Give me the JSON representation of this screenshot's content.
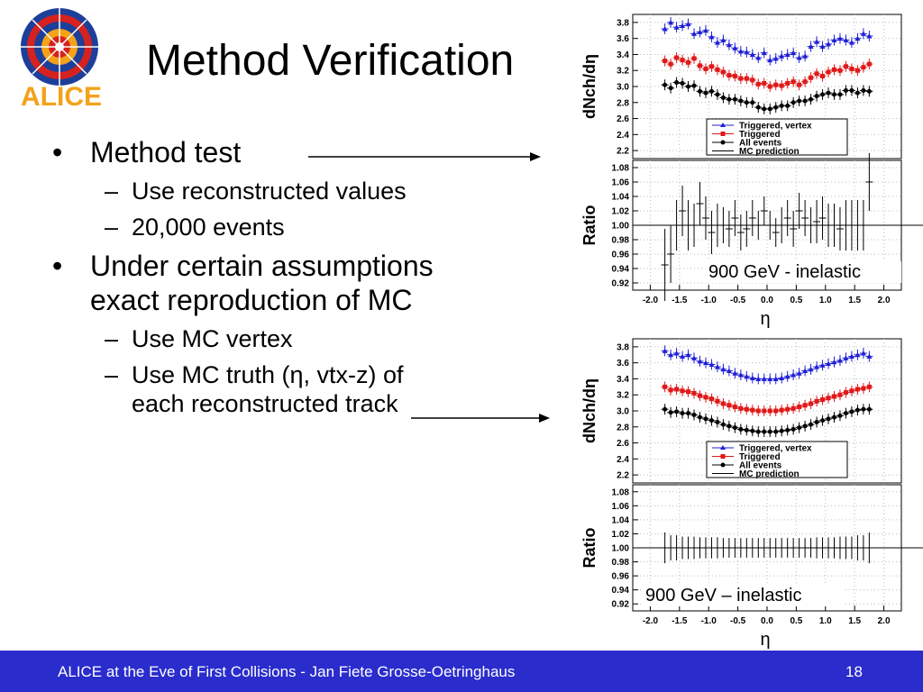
{
  "slide": {
    "title": "Method Verification",
    "logo_text": "ALICE",
    "bullets": [
      {
        "text": "Method test",
        "sub": [
          "Use reconstructed values",
          "20,000 events"
        ]
      },
      {
        "text": "Under certain assumptions exact reproduction of MC",
        "sub": [
          "Use MC vertex",
          "Use MC truth (η, vtx-z) of each reconstructed track"
        ]
      }
    ],
    "footer": "ALICE at the Eve of First Collisions  - Jan Fiete Grosse-Oetringhaus",
    "page_number": "18"
  },
  "colors": {
    "footer_bg": "#2a2ccc",
    "triggered_vertex": "#1f1fd6",
    "triggered": "#e01818",
    "all_events": "#000000",
    "logo_red": "#d6221e",
    "logo_blue": "#1d3f9a",
    "logo_orange": "#f3a21a"
  },
  "chart_data": [
    {
      "type": "scatter",
      "label": "900 GeV - inelastic",
      "xlabel": "η",
      "ylabel_top": "dNch/dη",
      "ylabel_bottom": "Ratio",
      "xlim": [
        -2.3,
        2.3
      ],
      "ylim_top": [
        2.1,
        3.9
      ],
      "ylim_bottom": [
        0.91,
        1.09
      ],
      "xticks": [
        "-2.0",
        "-1.5",
        "-1.0",
        "-0.5",
        "0.0",
        "0.5",
        "1.0",
        "1.5",
        "2.0"
      ],
      "yticks_top": [
        "2.2",
        "2.4",
        "2.6",
        "2.8",
        "3.0",
        "3.2",
        "3.4",
        "3.6",
        "3.8"
      ],
      "yticks_bottom": [
        "0.92",
        "0.94",
        "0.96",
        "0.98",
        "1.00",
        "1.02",
        "1.04",
        "1.06",
        "1.08"
      ],
      "legend": [
        "Triggered, vertex",
        "Triggered",
        "All events",
        "MC prediction"
      ],
      "x": [
        -1.75,
        -1.65,
        -1.55,
        -1.45,
        -1.35,
        -1.25,
        -1.15,
        -1.05,
        -0.95,
        -0.85,
        -0.75,
        -0.65,
        -0.55,
        -0.45,
        -0.35,
        -0.25,
        -0.15,
        -0.05,
        0.05,
        0.15,
        0.25,
        0.35,
        0.45,
        0.55,
        0.65,
        0.75,
        0.85,
        0.95,
        1.05,
        1.15,
        1.25,
        1.35,
        1.45,
        1.55,
        1.65,
        1.75
      ],
      "series": [
        {
          "name": "Triggered, vertex",
          "values": [
            3.72,
            3.8,
            3.74,
            3.76,
            3.78,
            3.66,
            3.68,
            3.7,
            3.62,
            3.55,
            3.58,
            3.52,
            3.48,
            3.44,
            3.43,
            3.4,
            3.36,
            3.42,
            3.33,
            3.35,
            3.38,
            3.4,
            3.42,
            3.36,
            3.38,
            3.5,
            3.56,
            3.5,
            3.53,
            3.58,
            3.6,
            3.58,
            3.55,
            3.6,
            3.66,
            3.63
          ]
        },
        {
          "name": "Triggered",
          "values": [
            3.32,
            3.28,
            3.36,
            3.33,
            3.3,
            3.35,
            3.26,
            3.22,
            3.25,
            3.21,
            3.18,
            3.14,
            3.13,
            3.1,
            3.1,
            3.08,
            3.03,
            3.04,
            3.0,
            3.02,
            3.01,
            3.04,
            3.06,
            3.02,
            3.06,
            3.11,
            3.16,
            3.13,
            3.18,
            3.21,
            3.2,
            3.25,
            3.22,
            3.2,
            3.24,
            3.28
          ]
        },
        {
          "name": "All events",
          "values": [
            3.02,
            2.98,
            3.05,
            3.04,
            3.0,
            3.01,
            2.94,
            2.92,
            2.94,
            2.9,
            2.86,
            2.84,
            2.84,
            2.82,
            2.8,
            2.8,
            2.74,
            2.72,
            2.72,
            2.74,
            2.76,
            2.76,
            2.8,
            2.82,
            2.82,
            2.84,
            2.88,
            2.9,
            2.92,
            2.9,
            2.9,
            2.95,
            2.95,
            2.92,
            2.95,
            2.94
          ]
        }
      ],
      "ratio": [
        0.945,
        0.96,
        1.0,
        1.02,
        1.0,
        1.0,
        1.03,
        1.01,
        0.99,
        1.0,
        1.0,
        0.995,
        1.01,
        0.99,
        0.995,
        1.01,
        1.0,
        1.02,
        1.0,
        0.99,
        1.0,
        1.01,
        0.995,
        1.02,
        1.01,
        1.0,
        1.005,
        1.01,
        1.0,
        1.0,
        0.995,
        1.0,
        1.0,
        1.0,
        1.0,
        1.06
      ],
      "ratio_err": [
        0.05,
        0.04,
        0.035,
        0.035,
        0.035,
        0.03,
        0.03,
        0.03,
        0.03,
        0.03,
        0.025,
        0.025,
        0.025,
        0.025,
        0.025,
        0.025,
        0.02,
        0.02,
        0.02,
        0.02,
        0.025,
        0.025,
        0.025,
        0.025,
        0.025,
        0.025,
        0.03,
        0.03,
        0.03,
        0.03,
        0.03,
        0.035,
        0.035,
        0.035,
        0.035,
        0.04
      ]
    },
    {
      "type": "scatter",
      "label": "900 GeV – inelastic",
      "xlabel": "η",
      "ylabel_top": "dNch/dη",
      "ylabel_bottom": "Ratio",
      "xlim": [
        -2.3,
        2.3
      ],
      "ylim_top": [
        2.1,
        3.9
      ],
      "ylim_bottom": [
        0.91,
        1.09
      ],
      "xticks": [
        "-2.0",
        "-1.5",
        "-1.0",
        "-0.5",
        "0.0",
        "0.5",
        "1.0",
        "1.5",
        "2.0"
      ],
      "yticks_top": [
        "2.2",
        "2.4",
        "2.6",
        "2.8",
        "3.0",
        "3.2",
        "3.4",
        "3.6",
        "3.8"
      ],
      "yticks_bottom": [
        "0.92",
        "0.94",
        "0.96",
        "0.98",
        "1.00",
        "1.02",
        "1.04",
        "1.06",
        "1.08"
      ],
      "legend": [
        "Triggered, vertex",
        "Triggered",
        "All events",
        "MC prediction"
      ],
      "x": [
        -1.75,
        -1.65,
        -1.55,
        -1.45,
        -1.35,
        -1.25,
        -1.15,
        -1.05,
        -0.95,
        -0.85,
        -0.75,
        -0.65,
        -0.55,
        -0.45,
        -0.35,
        -0.25,
        -0.15,
        -0.05,
        0.05,
        0.15,
        0.25,
        0.35,
        0.45,
        0.55,
        0.65,
        0.75,
        0.85,
        0.95,
        1.05,
        1.15,
        1.25,
        1.35,
        1.45,
        1.55,
        1.65,
        1.75
      ],
      "series": [
        {
          "name": "Triggered, vertex",
          "values": [
            3.75,
            3.7,
            3.72,
            3.68,
            3.7,
            3.66,
            3.62,
            3.6,
            3.58,
            3.55,
            3.52,
            3.5,
            3.47,
            3.45,
            3.43,
            3.41,
            3.4,
            3.4,
            3.4,
            3.4,
            3.41,
            3.43,
            3.45,
            3.47,
            3.5,
            3.52,
            3.55,
            3.57,
            3.59,
            3.61,
            3.63,
            3.66,
            3.68,
            3.7,
            3.72,
            3.68
          ]
        },
        {
          "name": "Triggered",
          "values": [
            3.3,
            3.26,
            3.27,
            3.25,
            3.24,
            3.22,
            3.19,
            3.17,
            3.15,
            3.12,
            3.09,
            3.07,
            3.05,
            3.03,
            3.02,
            3.01,
            3.0,
            3.0,
            3.0,
            3.0,
            3.01,
            3.02,
            3.03,
            3.05,
            3.07,
            3.09,
            3.12,
            3.14,
            3.16,
            3.18,
            3.2,
            3.23,
            3.25,
            3.27,
            3.28,
            3.3
          ]
        },
        {
          "name": "All events",
          "values": [
            3.02,
            2.98,
            2.99,
            2.97,
            2.97,
            2.95,
            2.92,
            2.9,
            2.88,
            2.86,
            2.83,
            2.81,
            2.79,
            2.77,
            2.76,
            2.75,
            2.74,
            2.74,
            2.74,
            2.74,
            2.75,
            2.76,
            2.77,
            2.79,
            2.81,
            2.83,
            2.86,
            2.88,
            2.9,
            2.92,
            2.94,
            2.97,
            2.99,
            3.01,
            3.02,
            3.02
          ]
        }
      ],
      "ratio": [
        1,
        1,
        1,
        1,
        1,
        1,
        1,
        1,
        1,
        1,
        1,
        1,
        1,
        1,
        1,
        1,
        1,
        1,
        1,
        1,
        1,
        1,
        1,
        1,
        1,
        1,
        1,
        1,
        1,
        1,
        1,
        1,
        1,
        1,
        1,
        1
      ],
      "ratio_err": [
        0.022,
        0.018,
        0.018,
        0.016,
        0.016,
        0.016,
        0.015,
        0.015,
        0.015,
        0.015,
        0.014,
        0.014,
        0.014,
        0.014,
        0.014,
        0.014,
        0.014,
        0.014,
        0.014,
        0.014,
        0.014,
        0.014,
        0.014,
        0.014,
        0.014,
        0.014,
        0.015,
        0.015,
        0.015,
        0.015,
        0.016,
        0.016,
        0.016,
        0.018,
        0.018,
        0.022
      ]
    }
  ]
}
